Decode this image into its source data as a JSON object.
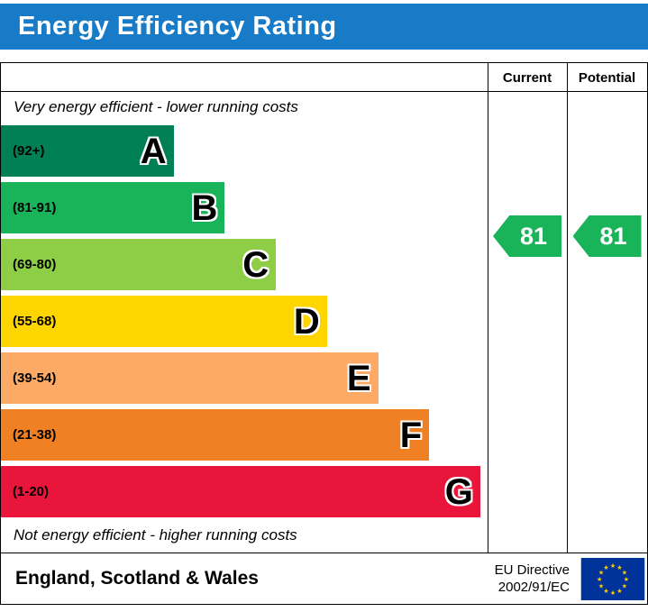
{
  "header": {
    "title": "Energy Efficiency Rating"
  },
  "colors": {
    "header_blue": "#187bc7",
    "eu_flag_background": "#003399",
    "eu_flag_stars": "#ffcc00"
  },
  "columns": {
    "current": "Current",
    "potential": "Potential"
  },
  "captions": {
    "top": "Very energy efficient - lower running costs",
    "bottom": "Not energy efficient - higher running costs"
  },
  "chart_data": {
    "type": "bar",
    "title": "Energy Efficiency Rating",
    "bands": [
      {
        "letter": "A",
        "range": "(92+)",
        "color": "#008054",
        "width_pct": 35.5
      },
      {
        "letter": "B",
        "range": "(81-91)",
        "color": "#19b459",
        "width_pct": 46
      },
      {
        "letter": "C",
        "range": "(69-80)",
        "color": "#8dce46",
        "width_pct": 56.5
      },
      {
        "letter": "D",
        "range": "(55-68)",
        "color": "#ffd500",
        "width_pct": 67
      },
      {
        "letter": "E",
        "range": "(39-54)",
        "color": "#fcaa65",
        "width_pct": 77.5
      },
      {
        "letter": "F",
        "range": "(21-38)",
        "color": "#ef8023",
        "width_pct": 88
      },
      {
        "letter": "G",
        "range": "(1-20)",
        "color": "#e9153b",
        "width_pct": 98.5
      }
    ],
    "current": {
      "value": "81",
      "band": "B",
      "color": "#19b459"
    },
    "potential": {
      "value": "81",
      "band": "B",
      "color": "#19b459"
    }
  },
  "footer": {
    "region": "England, Scotland & Wales",
    "directive_line1": "EU Directive",
    "directive_line2": "2002/91/EC"
  }
}
